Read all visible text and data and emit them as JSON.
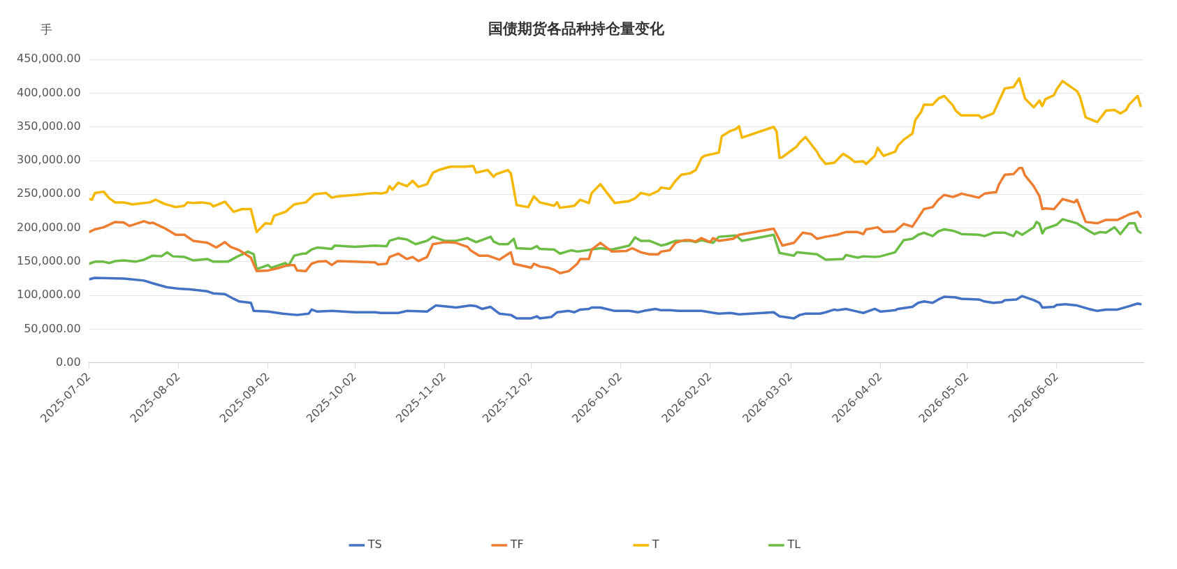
{
  "chart_data": {
    "type": "line",
    "title": "国债期货各品种持仓量变化",
    "ylabel": "手",
    "xlim": [
      "2025-07-02",
      "2026-07-02"
    ],
    "xticks": [
      "2025-07-02",
      "2025-08-02",
      "2025-09-02",
      "2025-10-02",
      "2025-11-02",
      "2025-12-02",
      "2026-01-02",
      "2026-02-02",
      "2026-03-02",
      "2026-04-02",
      "2026-05-02",
      "2026-06-02"
    ],
    "ylim": [
      0,
      450000
    ],
    "yticks": [
      {
        "value": 0,
        "label": "0.00"
      },
      {
        "value": 50000,
        "label": "50,000.00"
      },
      {
        "value": 100000,
        "label": "100,000.00"
      },
      {
        "value": 150000,
        "label": "150,000.00"
      },
      {
        "value": 200000,
        "label": "200,000.00"
      },
      {
        "value": 250000,
        "label": "250,000.00"
      },
      {
        "value": 300000,
        "label": "300,000.00"
      },
      {
        "value": 350000,
        "label": "350,000.00"
      },
      {
        "value": 400000,
        "label": "400,000.00"
      },
      {
        "value": 450000,
        "label": "450,000.00"
      }
    ],
    "grid": "y",
    "legend": "bottom",
    "marker": "none",
    "line_style": "solid",
    "series": [
      {
        "name": "TS",
        "color": "#4472c4",
        "x": [
          "2025-07-02",
          "2025-07-04",
          "2025-07-14",
          "2025-07-21",
          "2025-07-24",
          "2025-07-29",
          "2025-08-02",
          "2025-08-06",
          "2025-08-12",
          "2025-08-14",
          "2025-08-18",
          "2025-08-21",
          "2025-08-23",
          "2025-08-27",
          "2025-08-28",
          "2025-09-02",
          "2025-09-07",
          "2025-09-12",
          "2025-09-16",
          "2025-09-17",
          "2025-09-19",
          "2025-09-24",
          "2025-10-02",
          "2025-10-09",
          "2025-10-11",
          "2025-10-17",
          "2025-10-20",
          "2025-10-27",
          "2025-10-30",
          "2025-11-04",
          "2025-11-06",
          "2025-11-11",
          "2025-11-13",
          "2025-11-15",
          "2025-11-18",
          "2025-11-21",
          "2025-11-25",
          "2025-11-27",
          "2025-12-02",
          "2025-12-04",
          "2025-12-05",
          "2025-12-09",
          "2025-12-11",
          "2025-12-15",
          "2025-12-17",
          "2025-12-19",
          "2025-12-22",
          "2025-12-23",
          "2025-12-26",
          "2025-12-31",
          "2026-01-05",
          "2026-01-08",
          "2026-01-10",
          "2026-01-14",
          "2026-01-16",
          "2026-01-19",
          "2026-01-22",
          "2026-01-30",
          "2026-02-05",
          "2026-02-09",
          "2026-02-12",
          "2026-02-24",
          "2026-02-26",
          "2026-03-03",
          "2026-03-05",
          "2026-03-07",
          "2026-03-12",
          "2026-03-14",
          "2026-03-17",
          "2026-03-18",
          "2026-03-21",
          "2026-03-24",
          "2026-03-27",
          "2026-03-31",
          "2026-04-02",
          "2026-04-07",
          "2026-04-08",
          "2026-04-13",
          "2026-04-15",
          "2026-04-17",
          "2026-04-20",
          "2026-04-22",
          "2026-04-24",
          "2026-04-28",
          "2026-04-30",
          "2026-05-06",
          "2026-05-08",
          "2026-05-11",
          "2026-05-14",
          "2026-05-15",
          "2026-05-19",
          "2026-05-21",
          "2026-05-25",
          "2026-05-27",
          "2026-05-28",
          "2026-06-01",
          "2026-06-02",
          "2026-06-05",
          "2026-06-09",
          "2026-06-13",
          "2026-06-16",
          "2026-06-19",
          "2026-06-23",
          "2026-06-27",
          "2026-06-30",
          "2026-07-01"
        ],
        "values": [
          124000,
          126000,
          125000,
          122000,
          118000,
          112000,
          110000,
          109000,
          106000,
          103000,
          102000,
          95000,
          91000,
          89000,
          77000,
          76000,
          73000,
          71000,
          73000,
          79000,
          76000,
          77000,
          75000,
          75000,
          74000,
          74000,
          77000,
          76000,
          85000,
          83000,
          82000,
          85000,
          84000,
          80000,
          83000,
          73000,
          71000,
          66000,
          66000,
          69000,
          66000,
          68000,
          75000,
          77000,
          75000,
          79000,
          80000,
          82000,
          82000,
          77000,
          77000,
          75000,
          77000,
          80000,
          78000,
          78000,
          77000,
          77000,
          73000,
          74000,
          72000,
          75000,
          69000,
          66000,
          71000,
          73000,
          73000,
          75000,
          79000,
          78000,
          80000,
          77000,
          74000,
          80000,
          76000,
          78000,
          80000,
          83000,
          89000,
          91000,
          89000,
          94000,
          98000,
          97000,
          95000,
          94000,
          91000,
          89000,
          90000,
          93000,
          94000,
          99000,
          93000,
          89000,
          82000,
          83000,
          86000,
          87000,
          85000,
          80000,
          77000,
          79000,
          79000,
          84000,
          88000,
          87000
        ]
      },
      {
        "name": "TF",
        "color": "#ed7d31",
        "x": [
          "2025-07-02",
          "2025-07-04",
          "2025-07-07",
          "2025-07-11",
          "2025-07-14",
          "2025-07-16",
          "2025-07-21",
          "2025-07-23",
          "2025-07-24",
          "2025-07-28",
          "2025-08-01",
          "2025-08-04",
          "2025-08-07",
          "2025-08-12",
          "2025-08-15",
          "2025-08-18",
          "2025-08-20",
          "2025-08-23",
          "2025-08-27",
          "2025-08-29",
          "2025-09-02",
          "2025-09-05",
          "2025-09-09",
          "2025-09-11",
          "2025-09-12",
          "2025-09-15",
          "2025-09-17",
          "2025-09-19",
          "2025-09-22",
          "2025-09-24",
          "2025-09-26",
          "2025-10-02",
          "2025-10-09",
          "2025-10-10",
          "2025-10-13",
          "2025-10-14",
          "2025-10-17",
          "2025-10-20",
          "2025-10-22",
          "2025-10-24",
          "2025-10-27",
          "2025-10-29",
          "2025-11-02",
          "2025-11-06",
          "2025-11-10",
          "2025-11-11",
          "2025-11-14",
          "2025-11-17",
          "2025-11-21",
          "2025-11-25",
          "2025-11-26",
          "2025-12-02",
          "2025-12-03",
          "2025-12-05",
          "2025-12-08",
          "2025-12-10",
          "2025-12-12",
          "2025-12-15",
          "2025-12-18",
          "2025-12-19",
          "2025-12-22",
          "2025-12-23",
          "2025-12-26",
          "2025-12-30",
          "2026-01-04",
          "2026-01-06",
          "2026-01-09",
          "2026-01-12",
          "2026-01-15",
          "2026-01-16",
          "2026-01-19",
          "2026-01-21",
          "2026-01-24",
          "2026-01-26",
          "2026-01-28",
          "2026-01-30",
          "2026-02-02",
          "2026-02-03",
          "2026-02-05",
          "2026-02-10",
          "2026-02-12",
          "2026-02-24",
          "2026-02-27",
          "2026-03-03",
          "2026-03-06",
          "2026-03-09",
          "2026-03-11",
          "2026-03-14",
          "2026-03-18",
          "2026-03-21",
          "2026-03-25",
          "2026-03-27",
          "2026-03-28",
          "2026-04-01",
          "2026-04-03",
          "2026-04-07",
          "2026-04-10",
          "2026-04-13",
          "2026-04-17",
          "2026-04-20",
          "2026-04-22",
          "2026-04-24",
          "2026-04-27",
          "2026-04-29",
          "2026-04-30",
          "2026-05-06",
          "2026-05-08",
          "2026-05-11",
          "2026-05-12",
          "2026-05-13",
          "2026-05-15",
          "2026-05-18",
          "2026-05-20",
          "2026-05-21",
          "2026-05-22",
          "2026-05-25",
          "2026-05-27",
          "2026-05-28",
          "2026-05-29",
          "2026-06-01",
          "2026-06-04",
          "2026-06-08",
          "2026-06-09",
          "2026-06-12",
          "2026-06-16",
          "2026-06-19",
          "2026-06-23",
          "2026-06-25",
          "2026-06-27",
          "2026-06-30",
          "2026-07-01"
        ],
        "values": [
          194000,
          198000,
          201000,
          209000,
          208000,
          203000,
          210000,
          207000,
          208000,
          200000,
          190000,
          190000,
          181000,
          178000,
          171000,
          179000,
          172000,
          167000,
          156000,
          136000,
          137000,
          140000,
          145000,
          145000,
          137000,
          136000,
          147000,
          150000,
          151000,
          145000,
          151000,
          150000,
          149000,
          146000,
          147000,
          157000,
          162000,
          154000,
          157000,
          151000,
          157000,
          176000,
          179000,
          178000,
          172000,
          167000,
          159000,
          159000,
          153000,
          164000,
          147000,
          141000,
          147000,
          143000,
          141000,
          138000,
          133000,
          136000,
          147000,
          154000,
          154000,
          168000,
          178000,
          165000,
          166000,
          170000,
          164000,
          161000,
          161000,
          165000,
          167000,
          178000,
          182000,
          182000,
          180000,
          185000,
          179000,
          185000,
          181000,
          184000,
          190000,
          199000,
          174000,
          178000,
          193000,
          191000,
          184000,
          187000,
          190000,
          194000,
          194000,
          191000,
          198000,
          201000,
          194000,
          195000,
          206000,
          202000,
          228000,
          231000,
          242000,
          249000,
          246000,
          249000,
          251000,
          245000,
          251000,
          253000,
          253000,
          265000,
          279000,
          280000,
          289000,
          289000,
          278000,
          262000,
          247000,
          228000,
          229000,
          228000,
          243000,
          238000,
          242000,
          209000,
          207000,
          212000,
          212000,
          216000,
          220000,
          224000,
          217000
        ]
      },
      {
        "name": "T",
        "color": "#f5b800",
        "x": [
          "2025-07-02",
          "2025-07-03",
          "2025-07-04",
          "2025-07-07",
          "2025-07-09",
          "2025-07-11",
          "2025-07-14",
          "2025-07-17",
          "2025-07-23",
          "2025-07-25",
          "2025-07-28",
          "2025-08-01",
          "2025-08-04",
          "2025-08-05",
          "2025-08-07",
          "2025-08-10",
          "2025-08-13",
          "2025-08-14",
          "2025-08-18",
          "2025-08-21",
          "2025-08-24",
          "2025-08-27",
          "2025-08-29",
          "2025-09-01",
          "2025-09-03",
          "2025-09-04",
          "2025-09-08",
          "2025-09-11",
          "2025-09-15",
          "2025-09-18",
          "2025-09-22",
          "2025-09-24",
          "2025-09-26",
          "2025-10-02",
          "2025-10-09",
          "2025-10-11",
          "2025-10-13",
          "2025-10-14",
          "2025-10-15",
          "2025-10-17",
          "2025-10-20",
          "2025-10-22",
          "2025-10-24",
          "2025-10-27",
          "2025-10-29",
          "2025-10-31",
          "2025-11-04",
          "2025-11-09",
          "2025-11-12",
          "2025-11-13",
          "2025-11-17",
          "2025-11-19",
          "2025-11-20",
          "2025-11-24",
          "2025-11-25",
          "2025-11-27",
          "2025-12-01",
          "2025-12-03",
          "2025-12-05",
          "2025-12-10",
          "2025-12-11",
          "2025-12-12",
          "2025-12-17",
          "2025-12-19",
          "2025-12-22",
          "2025-12-23",
          "2025-12-26",
          "2025-12-31",
          "2026-01-05",
          "2026-01-07",
          "2026-01-09",
          "2026-01-12",
          "2026-01-15",
          "2026-01-16",
          "2026-01-19",
          "2026-01-21",
          "2026-01-23",
          "2026-01-26",
          "2026-01-28",
          "2026-01-30",
          "2026-01-31",
          "2026-02-03",
          "2026-02-05",
          "2026-02-06",
          "2026-02-09",
          "2026-02-11",
          "2026-02-12",
          "2026-02-13",
          "2026-02-24",
          "2026-02-25",
          "2026-02-26",
          "2026-02-27",
          "2026-03-04",
          "2026-03-05",
          "2026-03-07",
          "2026-03-11",
          "2026-03-12",
          "2026-03-14",
          "2026-03-17",
          "2026-03-20",
          "2026-03-22",
          "2026-03-24",
          "2026-03-27",
          "2026-03-28",
          "2026-03-31",
          "2026-04-01",
          "2026-04-03",
          "2026-04-07",
          "2026-04-08",
          "2026-04-10",
          "2026-04-13",
          "2026-04-14",
          "2026-04-16",
          "2026-04-17",
          "2026-04-20",
          "2026-04-22",
          "2026-04-24",
          "2026-04-27",
          "2026-04-28",
          "2026-04-30",
          "2026-05-06",
          "2026-05-07",
          "2026-05-11",
          "2026-05-15",
          "2026-05-18",
          "2026-05-20",
          "2026-05-22",
          "2026-05-25",
          "2026-05-27",
          "2026-05-28",
          "2026-05-29",
          "2026-06-01",
          "2026-06-02",
          "2026-06-04",
          "2026-06-09",
          "2026-06-10",
          "2026-06-12",
          "2026-06-16",
          "2026-06-19",
          "2026-06-22",
          "2026-06-24",
          "2026-06-26",
          "2026-06-27",
          "2026-06-30",
          "2026-07-01"
        ],
        "values": [
          243000,
          242000,
          252000,
          254000,
          244000,
          238000,
          238000,
          235000,
          238000,
          242000,
          236000,
          231000,
          233000,
          238000,
          237000,
          238000,
          236000,
          232000,
          239000,
          224000,
          228000,
          228000,
          194000,
          207000,
          206000,
          218000,
          224000,
          235000,
          238000,
          250000,
          252000,
          245000,
          247000,
          249000,
          252000,
          251000,
          253000,
          262000,
          257000,
          267000,
          262000,
          270000,
          261000,
          265000,
          282000,
          286000,
          291000,
          291000,
          292000,
          282000,
          286000,
          276000,
          280000,
          286000,
          281000,
          234000,
          231000,
          247000,
          238000,
          233000,
          238000,
          230000,
          233000,
          242000,
          237000,
          252000,
          265000,
          237000,
          240000,
          244000,
          252000,
          249000,
          255000,
          260000,
          258000,
          270000,
          279000,
          281000,
          286000,
          304000,
          307000,
          310000,
          312000,
          336000,
          344000,
          347000,
          351000,
          334000,
          350000,
          343000,
          304000,
          305000,
          321000,
          327000,
          335000,
          313000,
          305000,
          295000,
          297000,
          310000,
          305000,
          298000,
          299000,
          295000,
          307000,
          319000,
          307000,
          313000,
          322000,
          331000,
          340000,
          360000,
          372000,
          383000,
          383000,
          392000,
          396000,
          382000,
          374000,
          367000,
          367000,
          363000,
          370000,
          407000,
          409000,
          422000,
          392000,
          379000,
          389000,
          381000,
          391000,
          397000,
          406000,
          418000,
          403000,
          395000,
          364000,
          357000,
          374000,
          375000,
          370000,
          375000,
          383000,
          396000,
          381000
        ]
      },
      {
        "name": "TL",
        "color": "#6cbd45",
        "x": [
          "2025-07-02",
          "2025-07-04",
          "2025-07-07",
          "2025-07-09",
          "2025-07-11",
          "2025-07-14",
          "2025-07-18",
          "2025-07-21",
          "2025-07-24",
          "2025-07-27",
          "2025-07-29",
          "2025-07-31",
          "2025-08-04",
          "2025-08-07",
          "2025-08-12",
          "2025-08-14",
          "2025-08-19",
          "2025-08-22",
          "2025-08-26",
          "2025-08-28",
          "2025-08-29",
          "2025-09-02",
          "2025-09-03",
          "2025-09-08",
          "2025-09-09",
          "2025-09-11",
          "2025-09-14",
          "2025-09-15",
          "2025-09-17",
          "2025-09-19",
          "2025-09-24",
          "2025-09-25",
          "2025-10-02",
          "2025-10-09",
          "2025-10-13",
          "2025-10-14",
          "2025-10-17",
          "2025-10-20",
          "2025-10-23",
          "2025-10-27",
          "2025-10-29",
          "2025-11-02",
          "2025-11-06",
          "2025-11-10",
          "2025-11-13",
          "2025-11-18",
          "2025-11-19",
          "2025-11-21",
          "2025-11-24",
          "2025-11-26",
          "2025-11-27",
          "2025-12-02",
          "2025-12-04",
          "2025-12-05",
          "2025-12-10",
          "2025-12-12",
          "2025-12-16",
          "2025-12-18",
          "2025-12-26",
          "2025-12-30",
          "2026-01-05",
          "2026-01-07",
          "2026-01-09",
          "2026-01-12",
          "2026-01-16",
          "2026-01-18",
          "2026-01-21",
          "2026-01-26",
          "2026-01-28",
          "2026-01-30",
          "2026-02-03",
          "2026-02-05",
          "2026-02-11",
          "2026-02-13",
          "2026-02-24",
          "2026-02-26",
          "2026-03-03",
          "2026-03-04",
          "2026-03-11",
          "2026-03-14",
          "2026-03-20",
          "2026-03-21",
          "2026-03-25",
          "2026-03-27",
          "2026-03-31",
          "2026-04-02",
          "2026-04-07",
          "2026-04-10",
          "2026-04-13",
          "2026-04-15",
          "2026-04-17",
          "2026-04-20",
          "2026-04-22",
          "2026-04-24",
          "2026-04-27",
          "2026-04-29",
          "2026-04-30",
          "2026-05-06",
          "2026-05-08",
          "2026-05-11",
          "2026-05-15",
          "2026-05-18",
          "2026-05-19",
          "2026-05-21",
          "2026-05-25",
          "2026-05-26",
          "2026-05-27",
          "2026-05-28",
          "2026-05-29",
          "2026-06-02",
          "2026-06-04",
          "2026-06-09",
          "2026-06-10",
          "2026-06-13",
          "2026-06-15",
          "2026-06-17",
          "2026-06-19",
          "2026-06-22",
          "2026-06-24",
          "2026-06-27",
          "2026-06-29",
          "2026-06-30",
          "2026-07-01"
        ],
        "values": [
          147000,
          150000,
          150000,
          148000,
          151000,
          152000,
          150000,
          153000,
          159000,
          158000,
          164000,
          158000,
          157000,
          152000,
          154000,
          150000,
          150000,
          157000,
          165000,
          161000,
          139000,
          145000,
          141000,
          148000,
          144000,
          159000,
          162000,
          162000,
          168000,
          171000,
          169000,
          174000,
          172000,
          174000,
          173000,
          181000,
          185000,
          183000,
          176000,
          181000,
          187000,
          181000,
          181000,
          185000,
          179000,
          187000,
          180000,
          176000,
          176000,
          184000,
          170000,
          169000,
          173000,
          169000,
          168000,
          162000,
          167000,
          165000,
          170000,
          168000,
          174000,
          186000,
          181000,
          181000,
          174000,
          176000,
          181000,
          181000,
          179000,
          182000,
          178000,
          187000,
          189000,
          181000,
          190000,
          163000,
          159000,
          164000,
          161000,
          153000,
          154000,
          160000,
          156000,
          158000,
          157000,
          158000,
          164000,
          182000,
          184000,
          190000,
          193000,
          188000,
          195000,
          198000,
          196000,
          193000,
          191000,
          190000,
          188000,
          193000,
          193000,
          188000,
          195000,
          190000,
          201000,
          209000,
          206000,
          192000,
          199000,
          205000,
          213000,
          207000,
          204000,
          196000,
          191000,
          194000,
          193000,
          201000,
          191000,
          207000,
          207000,
          196000,
          193000
        ]
      }
    ]
  }
}
